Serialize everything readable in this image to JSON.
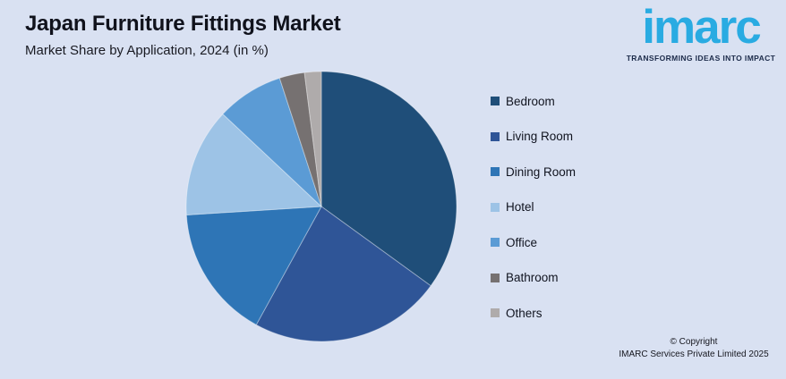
{
  "page": {
    "background": "#D9E1F2"
  },
  "header": {
    "title": "Japan Furniture Fittings Market",
    "subtitle": "Market Share by Application, 2024 (in %)"
  },
  "logo": {
    "text": "imarc",
    "tagline": "TRANSFORMING IDEAS INTO IMPACT",
    "brand_color": "#29ABE2",
    "tagline_color": "#1C2B4A"
  },
  "chart_data": {
    "type": "pie",
    "title": "Japan Furniture Fittings Market",
    "subtitle": "Market Share by Application, 2024 (in %)",
    "unit": "%",
    "categories": [
      "Bedroom",
      "Living Room",
      "Dining Room",
      "Hotel",
      "Office",
      "Bathroom",
      "Others"
    ],
    "values": [
      35,
      23,
      16,
      13,
      8,
      3,
      2
    ],
    "values_note": "estimated from slice angles; no data labels shown in chart",
    "colors": [
      "#1F4E79",
      "#2F5597",
      "#2E75B6",
      "#9DC3E6",
      "#5B9BD5",
      "#767171",
      "#AFABAB"
    ],
    "legend_position": "right",
    "start_angle_deg": 0,
    "direction": "clockwise",
    "data_labels": false,
    "grid": false
  },
  "footer": {
    "line1": "© Copyright",
    "line2": "IMARC Services Private Limited 2025"
  }
}
